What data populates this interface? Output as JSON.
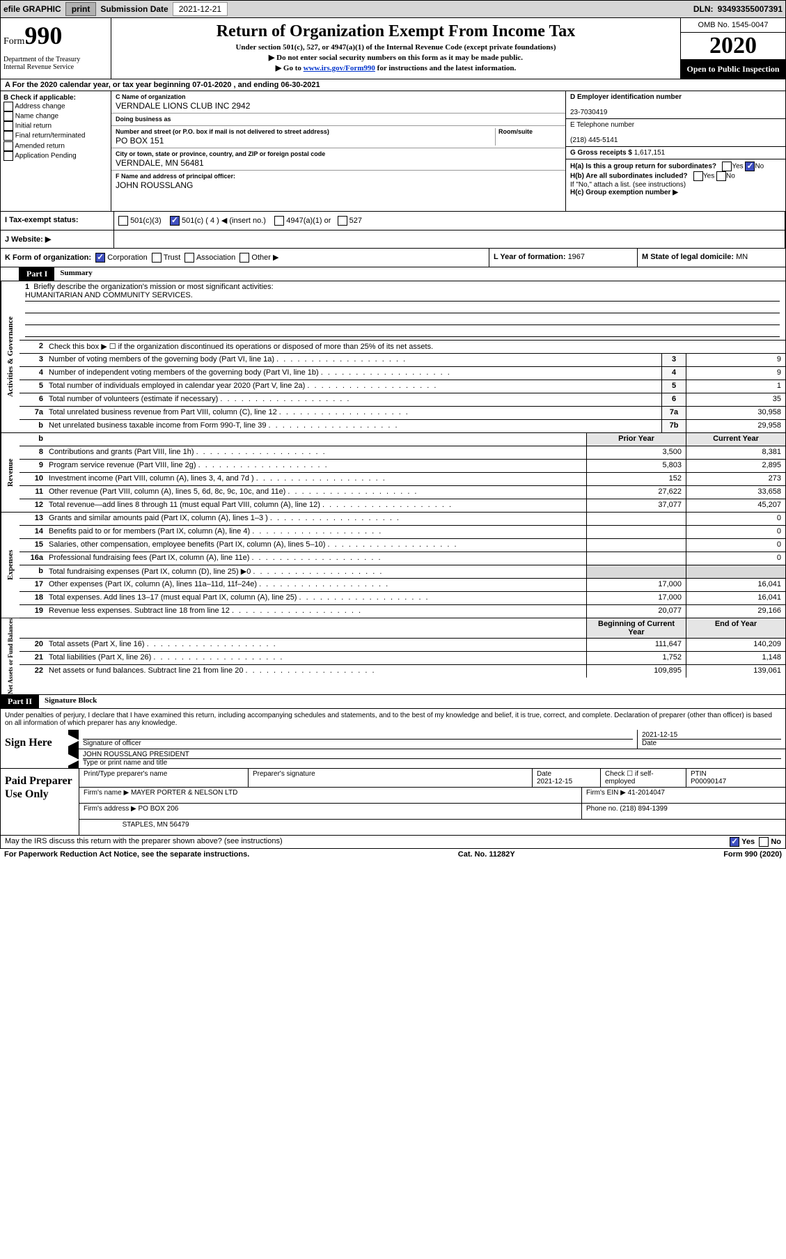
{
  "topbar": {
    "efile_label": "efile GRAPHIC",
    "print_btn": "print",
    "submission_label": "Submission Date",
    "submission_date": "2021-12-21",
    "dln_label": "DLN:",
    "dln": "93493355007391"
  },
  "header": {
    "form_word": "Form",
    "form_num": "990",
    "dept": "Department of the Treasury\nInternal Revenue Service",
    "title": "Return of Organization Exempt From Income Tax",
    "sub1": "Under section 501(c), 527, or 4947(a)(1) of the Internal Revenue Code (except private foundations)",
    "sub2": "▶ Do not enter social security numbers on this form as it may be made public.",
    "sub3_pre": "▶ Go to ",
    "sub3_link": "www.irs.gov/Form990",
    "sub3_post": " for instructions and the latest information.",
    "omb": "OMB No. 1545-0047",
    "tax_year": "2020",
    "open_inspect": "Open to Public Inspection"
  },
  "row_a": {
    "text": "A   For the 2020 calendar year, or tax year beginning 07-01-2020   , and ending 06-30-2021"
  },
  "col_b": {
    "heading": "B Check if applicable:",
    "items": [
      "Address change",
      "Name change",
      "Initial return",
      "Final return/terminated",
      "Amended return",
      "Application Pending"
    ]
  },
  "col_c": {
    "name_lab": "C Name of organization",
    "name": "VERNDALE LIONS CLUB INC 2942",
    "dba_lab": "Doing business as",
    "dba": "",
    "street_lab": "Number and street (or P.O. box if mail is not delivered to street address)",
    "room_lab": "Room/suite",
    "street": "PO BOX 151",
    "city_lab": "City or town, state or province, country, and ZIP or foreign postal code",
    "city": "VERNDALE, MN  56481",
    "f_lab": "F Name and address of principal officer:",
    "f_name": "JOHN ROUSSLANG"
  },
  "col_d": {
    "ein_lab": "D Employer identification number",
    "ein": "23-7030419",
    "tel_lab": "E Telephone number",
    "tel": "(218) 445-5141",
    "gross_lab": "G Gross receipts $",
    "gross": "1,617,151",
    "ha_lab": "H(a)  Is this a group return for subordinates?",
    "ha_no": "No",
    "hb_lab": "H(b)  Are all subordinates included?",
    "hb_note": "If \"No,\" attach a list. (see instructions)",
    "hc_lab": "H(c)  Group exemption number ▶"
  },
  "tax_status": {
    "i_lab": "I    Tax-exempt status:",
    "opt1": "501(c)(3)",
    "opt2": "501(c) ( 4 ) ◀ (insert no.)",
    "opt3": "4947(a)(1) or",
    "opt4": "527"
  },
  "website": {
    "j_lab": "J    Website: ▶"
  },
  "k_row": {
    "k_text": "K Form of organization:",
    "opts": [
      "Corporation",
      "Trust",
      "Association",
      "Other ▶"
    ],
    "l_text": "L Year of formation: ",
    "l_val": "1967",
    "m_text": "M State of legal domicile: ",
    "m_val": "MN"
  },
  "part1": {
    "tab": "Part I",
    "title": "Summary",
    "line1_label": "Briefly describe the organization's mission or most significant activities:",
    "mission": "HUMANITARIAN AND COMMUNITY SERVICES.",
    "line2": "Check this box ▶ ☐  if the organization discontinued its operations or disposed of more than 25% of its net assets.",
    "gov_lines": [
      {
        "n": "3",
        "t": "Number of voting members of the governing body (Part VI, line 1a)",
        "box": "3",
        "v": "9"
      },
      {
        "n": "4",
        "t": "Number of independent voting members of the governing body (Part VI, line 1b)",
        "box": "4",
        "v": "9"
      },
      {
        "n": "5",
        "t": "Total number of individuals employed in calendar year 2020 (Part V, line 2a)",
        "box": "5",
        "v": "1"
      },
      {
        "n": "6",
        "t": "Total number of volunteers (estimate if necessary)",
        "box": "6",
        "v": "35"
      },
      {
        "n": "7a",
        "t": "Total unrelated business revenue from Part VIII, column (C), line 12",
        "box": "7a",
        "v": "30,958"
      },
      {
        "n": "b",
        "t": "Net unrelated business taxable income from Form 990-T, line 39",
        "box": "7b",
        "v": "29,958"
      }
    ],
    "table_header": {
      "prior": "Prior Year",
      "current": "Current Year"
    },
    "rev_lines": [
      {
        "n": "8",
        "t": "Contributions and grants (Part VIII, line 1h)",
        "p": "3,500",
        "c": "8,381"
      },
      {
        "n": "9",
        "t": "Program service revenue (Part VIII, line 2g)",
        "p": "5,803",
        "c": "2,895"
      },
      {
        "n": "10",
        "t": "Investment income (Part VIII, column (A), lines 3, 4, and 7d )",
        "p": "152",
        "c": "273"
      },
      {
        "n": "11",
        "t": "Other revenue (Part VIII, column (A), lines 5, 6d, 8c, 9c, 10c, and 11e)",
        "p": "27,622",
        "c": "33,658"
      },
      {
        "n": "12",
        "t": "Total revenue—add lines 8 through 11 (must equal Part VIII, column (A), line 12)",
        "p": "37,077",
        "c": "45,207"
      }
    ],
    "exp_lines": [
      {
        "n": "13",
        "t": "Grants and similar amounts paid (Part IX, column (A), lines 1–3 )",
        "p": "",
        "c": "0"
      },
      {
        "n": "14",
        "t": "Benefits paid to or for members (Part IX, column (A), line 4)",
        "p": "",
        "c": "0"
      },
      {
        "n": "15",
        "t": "Salaries, other compensation, employee benefits (Part IX, column (A), lines 5–10)",
        "p": "",
        "c": "0"
      },
      {
        "n": "16a",
        "t": "Professional fundraising fees (Part IX, column (A), line 11e)",
        "p": "",
        "c": "0"
      },
      {
        "n": "b",
        "t": "Total fundraising expenses (Part IX, column (D), line 25) ▶0",
        "p": "GRAY",
        "c": "GRAY"
      },
      {
        "n": "17",
        "t": "Other expenses (Part IX, column (A), lines 11a–11d, 11f–24e)",
        "p": "17,000",
        "c": "16,041"
      },
      {
        "n": "18",
        "t": "Total expenses. Add lines 13–17 (must equal Part IX, column (A), line 25)",
        "p": "17,000",
        "c": "16,041"
      },
      {
        "n": "19",
        "t": "Revenue less expenses. Subtract line 18 from line 12",
        "p": "20,077",
        "c": "29,166"
      }
    ],
    "net_header": {
      "prior": "Beginning of Current Year",
      "current": "End of Year"
    },
    "net_lines": [
      {
        "n": "20",
        "t": "Total assets (Part X, line 16)",
        "p": "111,647",
        "c": "140,209"
      },
      {
        "n": "21",
        "t": "Total liabilities (Part X, line 26)",
        "p": "1,752",
        "c": "1,148"
      },
      {
        "n": "22",
        "t": "Net assets or fund balances. Subtract line 21 from line 20",
        "p": "109,895",
        "c": "139,061"
      }
    ]
  },
  "vert_labels": {
    "gov": "Activities & Governance",
    "rev": "Revenue",
    "exp": "Expenses",
    "net": "Net Assets or Fund Balances"
  },
  "part2": {
    "tab": "Part II",
    "title": "Signature Block",
    "perjury": "Under penalties of perjury, I declare that I have examined this return, including accompanying schedules and statements, and to the best of my knowledge and belief, it is true, correct, and complete. Declaration of preparer (other than officer) is based on all information of which preparer has any knowledge."
  },
  "sign": {
    "label": "Sign Here",
    "sig_of_officer": "Signature of officer",
    "date_lab": "Date",
    "date": "2021-12-15",
    "name": "JOHN ROUSSLANG  PRESIDENT",
    "name_lab": "Type or print name and title"
  },
  "prep": {
    "label": "Paid Preparer Use Only",
    "print_name_lab": "Print/Type preparer's name",
    "sig_lab": "Preparer's signature",
    "date_lab": "Date",
    "date": "2021-12-15",
    "check_lab": "Check ☐ if self-employed",
    "ptin_lab": "PTIN",
    "ptin": "P00090147",
    "firm_name_lab": "Firm's name   ▶",
    "firm_name": "MAYER PORTER & NELSON LTD",
    "firm_ein_lab": "Firm's EIN ▶",
    "firm_ein": "41-2014047",
    "firm_addr_lab": "Firm's address ▶",
    "firm_addr1": "PO BOX 206",
    "firm_addr2": "STAPLES, MN  56479",
    "phone_lab": "Phone no.",
    "phone": "(218) 894-1399"
  },
  "footer": {
    "discuss": "May the IRS discuss this return with the preparer shown above? (see instructions)",
    "yes": "Yes",
    "no": "No",
    "paperwork": "For Paperwork Reduction Act Notice, see the separate instructions.",
    "cat": "Cat. No. 11282Y",
    "form": "Form 990 (2020)"
  },
  "style": {
    "bg": "#ffffff",
    "header_bar_bg": "#d6d6d6",
    "black": "#000000",
    "link": "#0033cc",
    "checked": "#4050c0",
    "gray_cell": "#d9d9d9",
    "lightgray": "#f7f7f7",
    "table_header_bg": "#e5e5e5"
  }
}
